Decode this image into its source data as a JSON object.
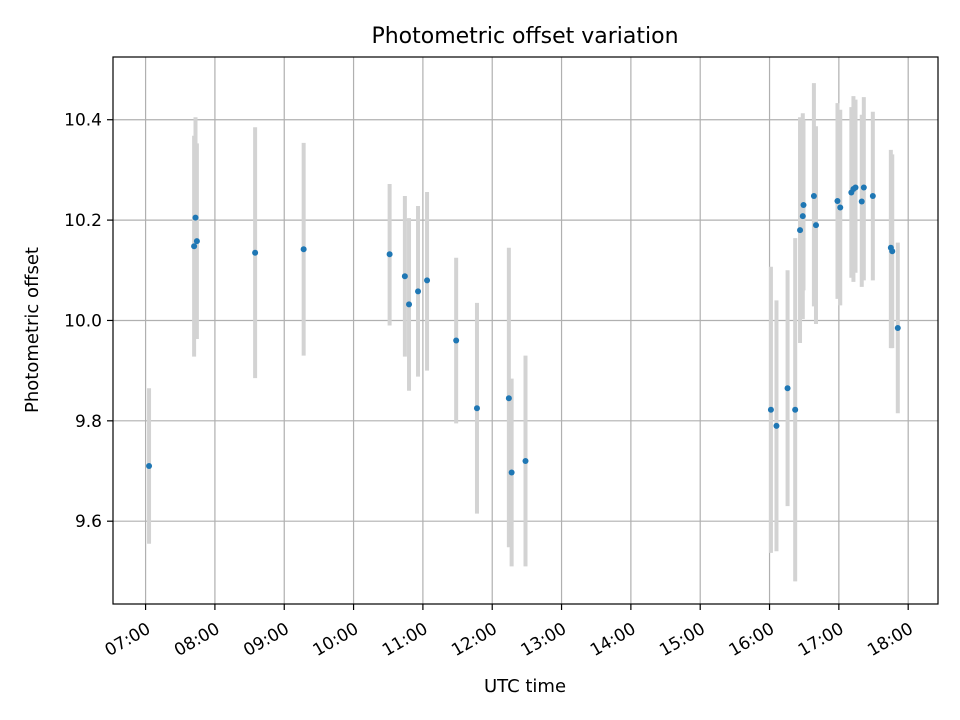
{
  "chart_data": {
    "type": "scatter",
    "title": "Photometric offset variation",
    "xlabel": "UTC time",
    "ylabel": "Photometric offset",
    "x_unit": "hours UTC",
    "xlim": [
      6.53,
      18.43
    ],
    "ylim": [
      9.435,
      10.525
    ],
    "x_ticks": [
      {
        "value": 7,
        "label": "07:00"
      },
      {
        "value": 8,
        "label": "08:00"
      },
      {
        "value": 9,
        "label": "09:00"
      },
      {
        "value": 10,
        "label": "10:00"
      },
      {
        "value": 11,
        "label": "11:00"
      },
      {
        "value": 12,
        "label": "12:00"
      },
      {
        "value": 13,
        "label": "13:00"
      },
      {
        "value": 14,
        "label": "14:00"
      },
      {
        "value": 15,
        "label": "15:00"
      },
      {
        "value": 16,
        "label": "16:00"
      },
      {
        "value": 17,
        "label": "17:00"
      },
      {
        "value": 18,
        "label": "18:00"
      }
    ],
    "y_ticks": [
      {
        "value": 9.6,
        "label": "9.6"
      },
      {
        "value": 9.8,
        "label": "9.8"
      },
      {
        "value": 10.0,
        "label": "10.0"
      },
      {
        "value": 10.2,
        "label": "10.2"
      },
      {
        "value": 10.4,
        "label": "10.4"
      }
    ],
    "grid": true,
    "point_color": "#1f77b4",
    "errorbar_color": "#d3d3d3",
    "points": [
      {
        "x": 7.05,
        "y": 9.71,
        "lo": 9.555,
        "hi": 9.865
      },
      {
        "x": 7.7,
        "y": 10.148,
        "lo": 9.928,
        "hi": 10.368
      },
      {
        "x": 7.72,
        "y": 10.205,
        "lo": 10.005,
        "hi": 10.405
      },
      {
        "x": 7.74,
        "y": 10.158,
        "lo": 9.963,
        "hi": 10.353
      },
      {
        "x": 8.58,
        "y": 10.135,
        "lo": 9.885,
        "hi": 10.385
      },
      {
        "x": 9.28,
        "y": 10.142,
        "lo": 9.93,
        "hi": 10.354
      },
      {
        "x": 10.52,
        "y": 10.132,
        "lo": 9.99,
        "hi": 10.272
      },
      {
        "x": 10.74,
        "y": 10.088,
        "lo": 9.928,
        "hi": 10.248
      },
      {
        "x": 10.8,
        "y": 10.032,
        "lo": 9.86,
        "hi": 10.204
      },
      {
        "x": 10.93,
        "y": 10.058,
        "lo": 9.888,
        "hi": 10.228
      },
      {
        "x": 11.06,
        "y": 10.08,
        "lo": 9.9,
        "hi": 10.256
      },
      {
        "x": 11.48,
        "y": 9.96,
        "lo": 9.795,
        "hi": 10.125
      },
      {
        "x": 11.78,
        "y": 9.825,
        "lo": 9.615,
        "hi": 10.035
      },
      {
        "x": 12.24,
        "y": 9.845,
        "lo": 9.548,
        "hi": 10.145
      },
      {
        "x": 12.28,
        "y": 9.697,
        "lo": 9.51,
        "hi": 9.884
      },
      {
        "x": 12.48,
        "y": 9.72,
        "lo": 9.51,
        "hi": 9.93
      },
      {
        "x": 16.02,
        "y": 9.822,
        "lo": 9.537,
        "hi": 10.107
      },
      {
        "x": 16.1,
        "y": 9.79,
        "lo": 9.54,
        "hi": 10.04
      },
      {
        "x": 16.26,
        "y": 9.865,
        "lo": 9.63,
        "hi": 10.1
      },
      {
        "x": 16.37,
        "y": 9.822,
        "lo": 9.48,
        "hi": 10.164
      },
      {
        "x": 16.44,
        "y": 10.18,
        "lo": 9.955,
        "hi": 10.405
      },
      {
        "x": 16.48,
        "y": 10.208,
        "lo": 10.003,
        "hi": 10.413
      },
      {
        "x": 16.49,
        "y": 10.23,
        "lo": 10.06,
        "hi": 10.4
      },
      {
        "x": 16.64,
        "y": 10.248,
        "lo": 10.028,
        "hi": 10.473
      },
      {
        "x": 16.67,
        "y": 10.19,
        "lo": 9.993,
        "hi": 10.387
      },
      {
        "x": 16.98,
        "y": 10.238,
        "lo": 10.043,
        "hi": 10.433
      },
      {
        "x": 17.02,
        "y": 10.225,
        "lo": 10.03,
        "hi": 10.42
      },
      {
        "x": 17.18,
        "y": 10.255,
        "lo": 10.085,
        "hi": 10.425
      },
      {
        "x": 17.21,
        "y": 10.262,
        "lo": 10.077,
        "hi": 10.447
      },
      {
        "x": 17.24,
        "y": 10.265,
        "lo": 10.095,
        "hi": 10.44
      },
      {
        "x": 17.33,
        "y": 10.237,
        "lo": 10.067,
        "hi": 10.41
      },
      {
        "x": 17.36,
        "y": 10.265,
        "lo": 10.08,
        "hi": 10.445
      },
      {
        "x": 17.49,
        "y": 10.248,
        "lo": 10.08,
        "hi": 10.416
      },
      {
        "x": 17.75,
        "y": 10.145,
        "lo": 9.945,
        "hi": 10.34
      },
      {
        "x": 17.77,
        "y": 10.138,
        "lo": 9.945,
        "hi": 10.331
      },
      {
        "x": 17.85,
        "y": 9.985,
        "lo": 9.815,
        "hi": 10.155
      }
    ]
  }
}
